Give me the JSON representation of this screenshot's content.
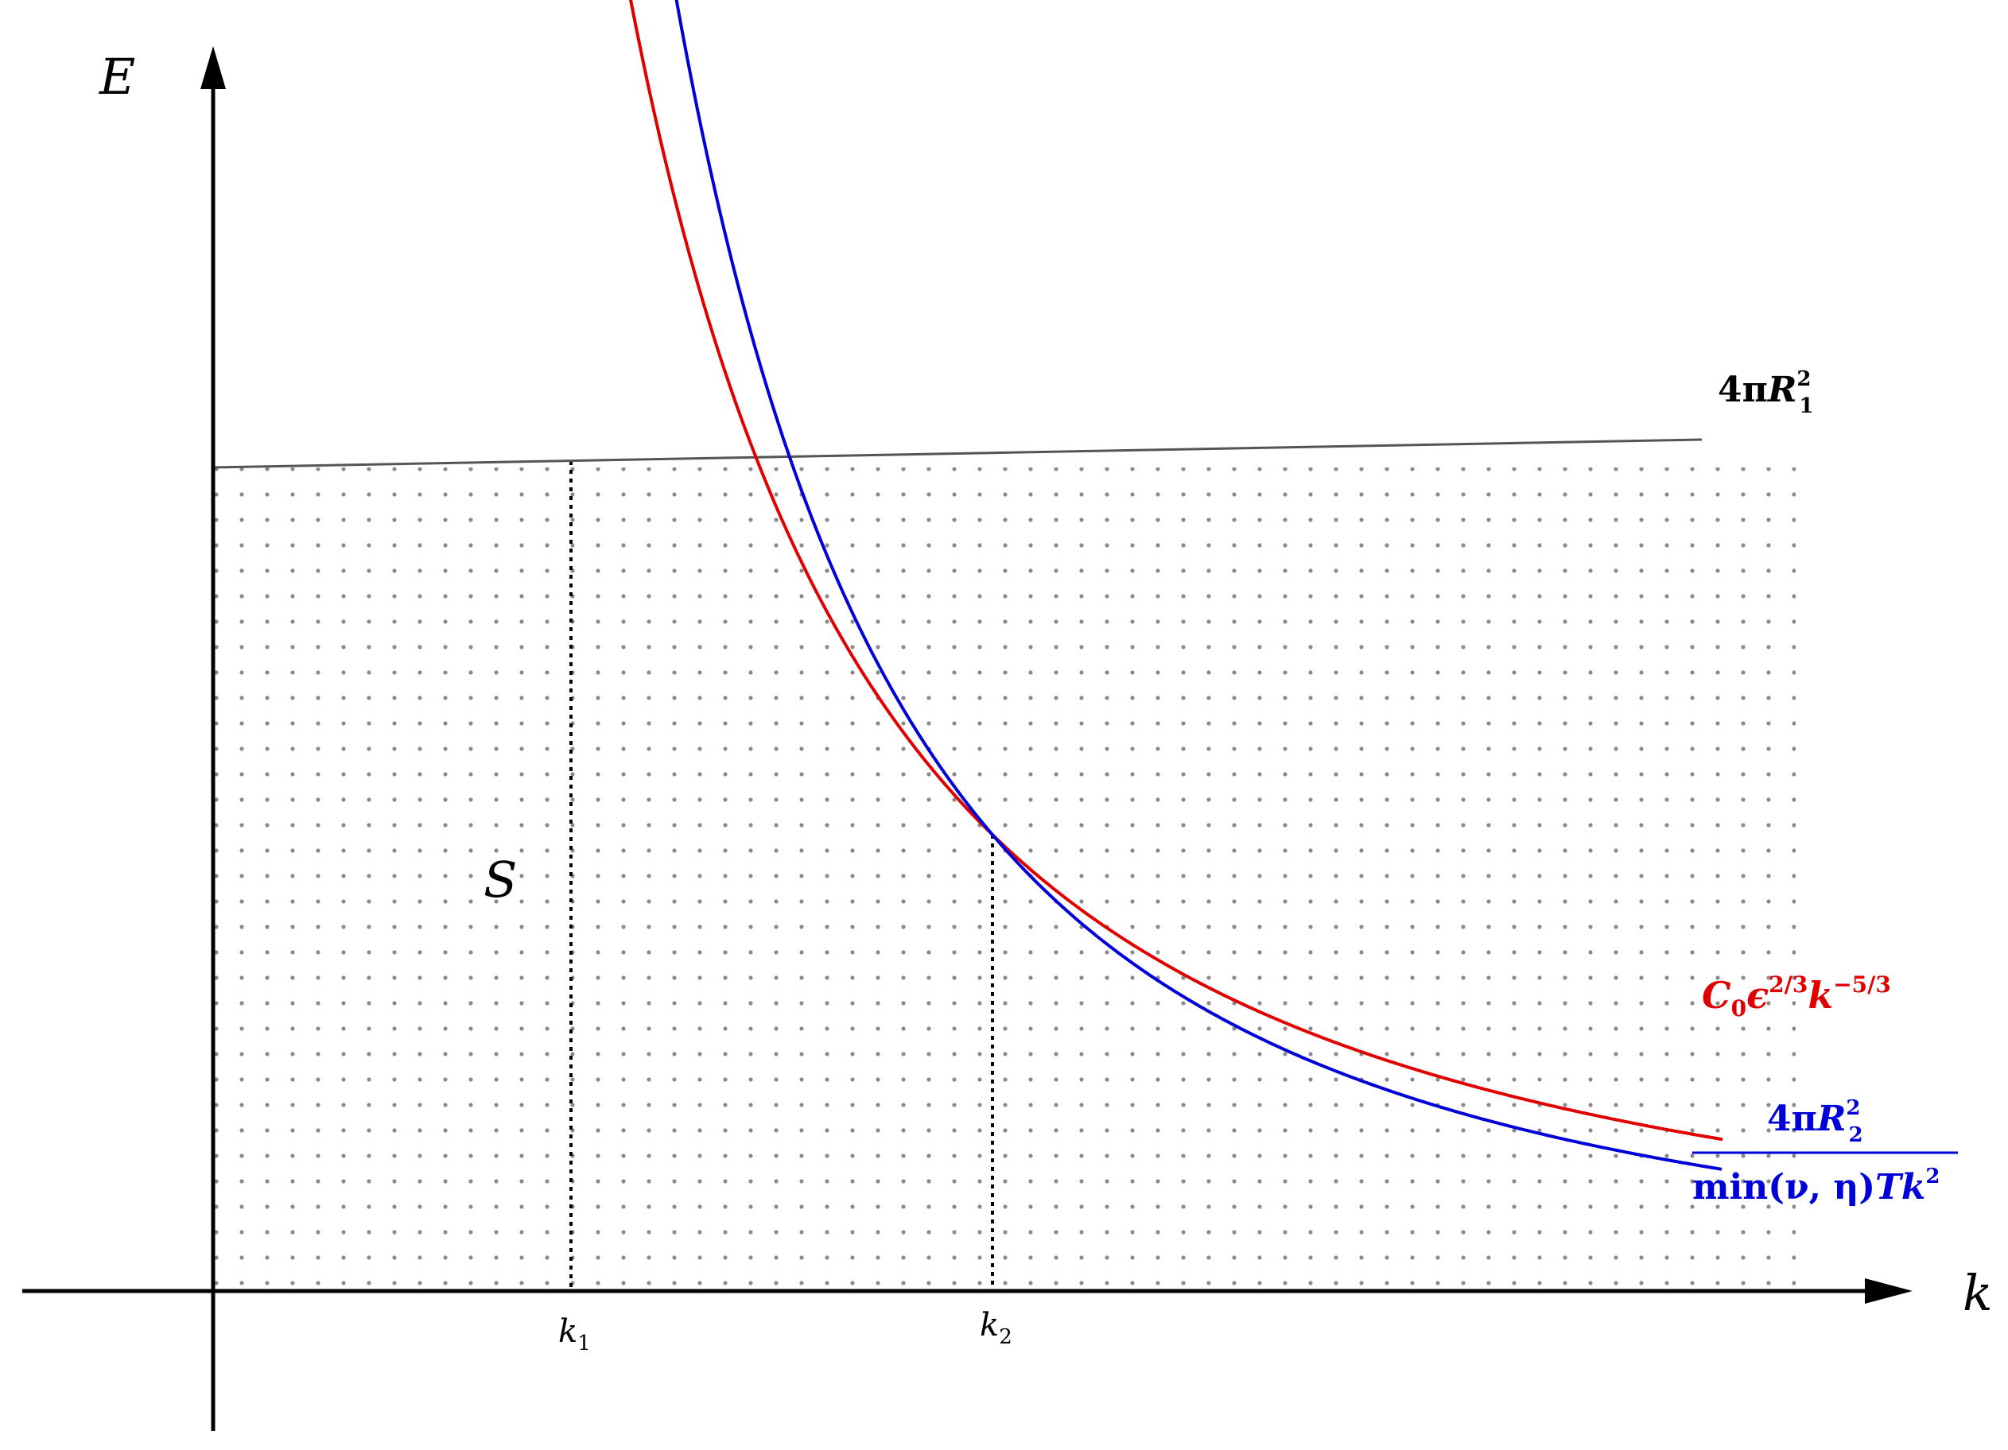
{
  "axes": {
    "y_label": "E",
    "x_label": "k"
  },
  "ticks": [
    {
      "name": "k",
      "sub": "1"
    },
    {
      "name": "k",
      "sub": "2"
    }
  ],
  "region_label": "S",
  "labels": {
    "horizontal": {
      "prefix": "4π",
      "var": "R",
      "sub": "1",
      "sup": "2",
      "color": "#000000"
    },
    "red": {
      "c": "C",
      "c_sub": "0",
      "eps": "ϵ",
      "eps_sup": "2/3",
      "k": "k",
      "k_sup": "−5/3",
      "color": "#e00000"
    },
    "blue": {
      "num_prefix": "4π",
      "num_var": "R",
      "num_sub": "2",
      "num_sup": "2",
      "den_text": "min(ν, η)",
      "den_T": "T",
      "den_k": "k",
      "den_sup": "2",
      "color": "#0000d8"
    }
  },
  "colors": {
    "axis": "#000000",
    "horizontal_line": "#555555",
    "red_curve": "#e00000",
    "blue_curve": "#0000d8",
    "dots": "#8a8a8a"
  }
}
